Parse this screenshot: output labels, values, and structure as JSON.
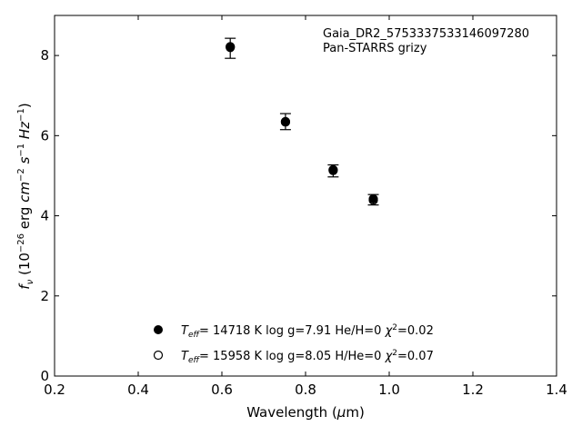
{
  "chart_data": {
    "type": "scatter",
    "xlabel": "Wavelength (μm)",
    "ylabel": "fν (10⁻²⁶ erg cm⁻² s⁻¹ Hz⁻¹)",
    "xlim": [
      0.2,
      1.4
    ],
    "ylim": [
      0,
      9
    ],
    "x_ticks": [
      0.2,
      0.4,
      0.6,
      0.8,
      1.0,
      1.2,
      1.4
    ],
    "x_tick_labels": [
      "0.2",
      "0.4",
      "0.6",
      "0.8",
      "1.0",
      "1.2",
      "1.4"
    ],
    "y_ticks": [
      0,
      2,
      4,
      6,
      8
    ],
    "y_tick_labels": [
      "0",
      "2",
      "4",
      "6",
      "8"
    ],
    "grid": false,
    "annotations": [
      "Gaia_DR2_5753337533146097280",
      "Pan-STARRS grizy"
    ],
    "observed": {
      "x": [
        0.62,
        0.752,
        0.866,
        0.962
      ],
      "y": [
        8.18,
        6.35,
        5.12,
        4.4
      ],
      "yerr": [
        0.25,
        0.2,
        0.15,
        0.13
      ]
    },
    "series": [
      {
        "name": "Teff= 14718 K  log g=7.91  He/H=0  χ²=0.02",
        "marker": "filled-circle",
        "x": [
          0.62,
          0.752,
          0.866,
          0.962
        ],
        "y": [
          8.2,
          6.35,
          5.15,
          4.42
        ]
      },
      {
        "name": "Teff= 15958 K  log g=8.05  H/He=0  χ²=0.07",
        "marker": "open-circle",
        "x": [
          0.62,
          0.752,
          0.866,
          0.962
        ],
        "y": [
          8.22,
          6.34,
          5.13,
          4.39
        ]
      }
    ],
    "legend_placement": "lower-center",
    "legend": [
      {
        "marker": "filled-circle",
        "teff_value": "= 14718 K  log g=7.91  He/H=0  ",
        "chi_value": "=0.02"
      },
      {
        "marker": "open-circle",
        "teff_value": "= 15958 K  log g=8.05  H/He=0  ",
        "chi_value": "=0.07"
      }
    ]
  }
}
